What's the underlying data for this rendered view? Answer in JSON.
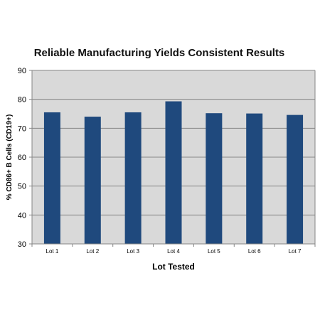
{
  "chart_data": {
    "type": "bar",
    "title": "Reliable Manufacturing Yields Consistent Results",
    "xlabel": "Lot Tested",
    "ylabel": "% CD86+ B Cells (CD19+)",
    "categories": [
      "Lot 1",
      "Lot 2",
      "Lot 3",
      "Lot 4",
      "Lot 5",
      "Lot 6",
      "Lot 7"
    ],
    "values": [
      75.5,
      74.0,
      75.5,
      79.3,
      75.2,
      75.1,
      74.6
    ],
    "ylim": [
      30,
      90
    ],
    "yticks": [
      "30",
      "40",
      "50",
      "60",
      "70",
      "80",
      "90"
    ],
    "grid": true,
    "legend": "none",
    "colors": {
      "bar": "#1f497d",
      "plot_bg": "#d9d9d9",
      "grid": "#868686",
      "axis": "#868686"
    }
  }
}
